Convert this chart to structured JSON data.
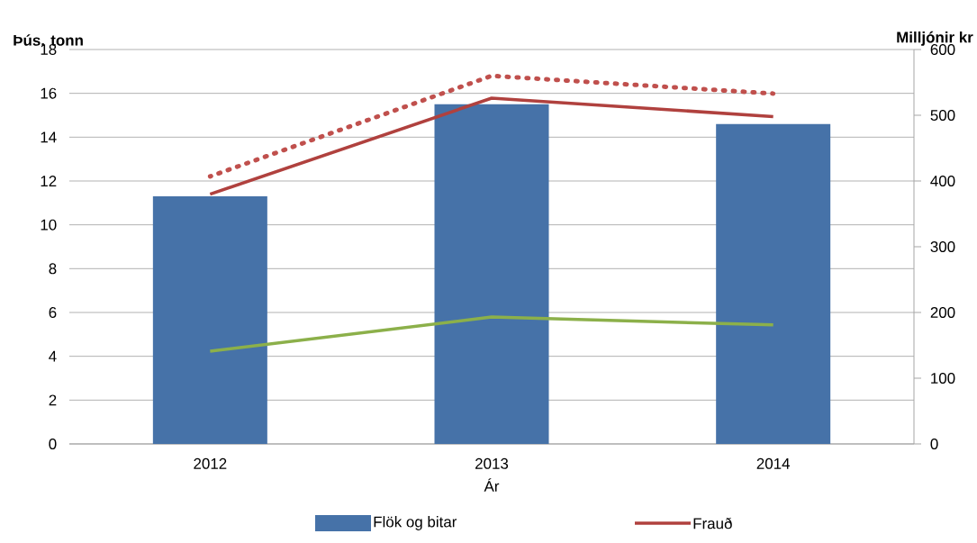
{
  "chart_data": {
    "type": "bar",
    "categories": [
      "2012",
      "2013",
      "2014"
    ],
    "xlabel": "Ár",
    "ylabel": "Þús. tonn",
    "y2label": "Milljónir kr",
    "ylim": [
      0,
      18
    ],
    "yticks": [
      0,
      2,
      4,
      6,
      8,
      10,
      12,
      14,
      16,
      18
    ],
    "y2lim": [
      0,
      600
    ],
    "y2ticks": [
      0,
      100,
      200,
      300,
      400,
      500,
      600
    ],
    "grid": "y",
    "legend": "bottom",
    "series": [
      {
        "name": "Flök og bitar",
        "color": "#4672a8",
        "values": [
          11.3,
          15.5,
          14.6
        ]
      },
      {
        "name": "Frauð",
        "type": "line",
        "axis": "y2",
        "color": "#b0413e",
        "values": [
          380,
          526,
          498
        ]
      },
      {
        "type": "line",
        "axis": "y2",
        "color": "#8cb04a",
        "values": [
          141,
          193,
          181
        ]
      },
      {
        "type": "line",
        "axis": "y2",
        "color": "#c0504d",
        "line_style": "dotted",
        "values": [
          407,
          560,
          533
        ]
      }
    ]
  }
}
